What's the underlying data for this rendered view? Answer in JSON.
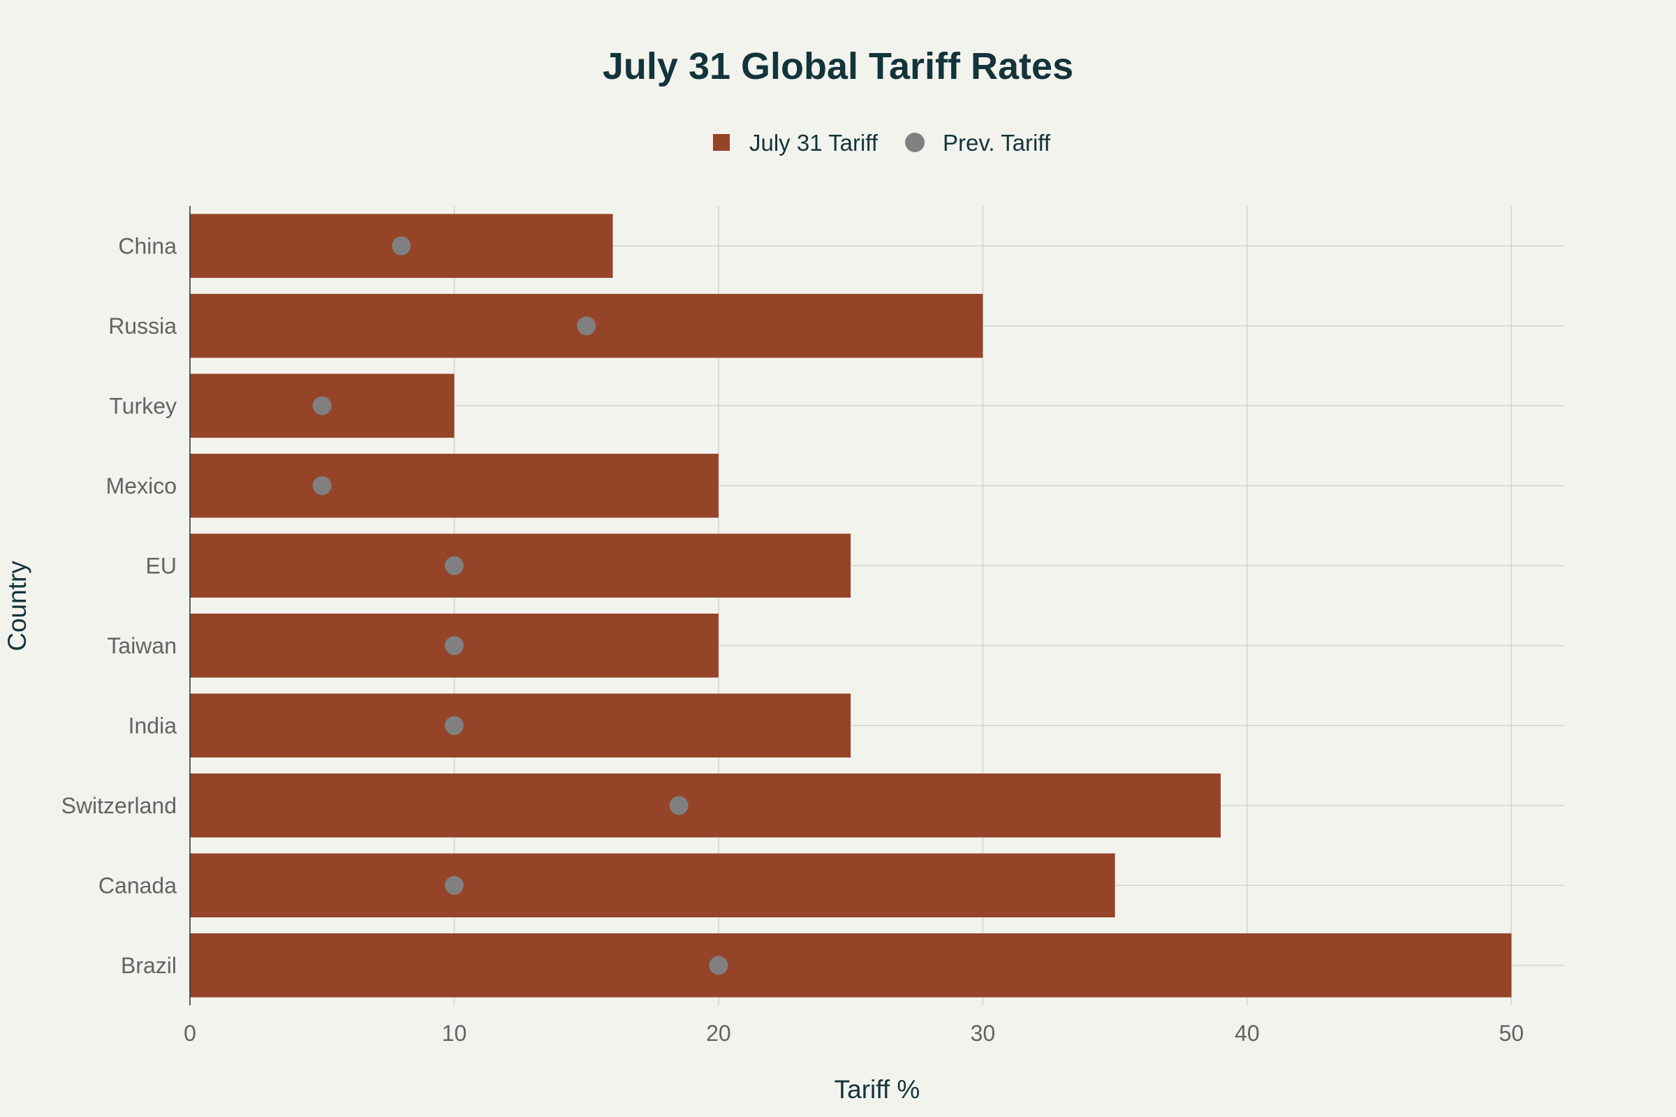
{
  "chart_data": {
    "type": "bar",
    "orientation": "horizontal",
    "title": "July 31 Global Tariff Rates",
    "xlabel": "Tariff %",
    "ylabel": "Country",
    "xlim": [
      0,
      52
    ],
    "xticks": [
      0,
      10,
      20,
      30,
      40,
      50
    ],
    "grid": true,
    "legend_position": "top-center",
    "categories": [
      "China",
      "Russia",
      "Turkey",
      "Mexico",
      "EU",
      "Taiwan",
      "India",
      "Switzerland",
      "Canada",
      "Brazil"
    ],
    "series": [
      {
        "name": "July 31 Tariff",
        "kind": "bar",
        "color": "#954427",
        "values": [
          16,
          30,
          10,
          20,
          25,
          20,
          25,
          39,
          35,
          50
        ]
      },
      {
        "name": "Prev. Tariff",
        "kind": "marker",
        "color": "#808080",
        "values": [
          8,
          15,
          5,
          5,
          10,
          10,
          10,
          18.5,
          10,
          20
        ]
      }
    ]
  }
}
